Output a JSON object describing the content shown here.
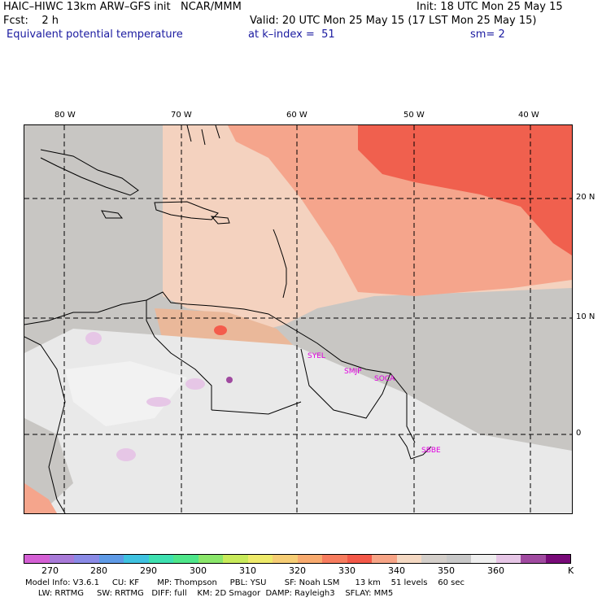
{
  "header": {
    "title": "HAIC–HIWC 13km ARW–GFS init   NCAR/MMM",
    "init": "Init: 18 UTC Mon 25 May 15",
    "fcst": "Fcst:    2 h",
    "valid": "Valid: 20 UTC Mon 25 May 15 (17 LST Mon 25 May 15)",
    "field": "Equivalent potential temperature",
    "level": "at k–index =  51",
    "smooth": "sm= 2"
  },
  "map": {
    "lon_labels": [
      "80 W",
      "70 W",
      "60 W",
      "50 W",
      "40 W"
    ],
    "lat_labels": [
      "20 N",
      "10 N",
      "0"
    ],
    "stations": [
      "SYEL",
      "SMJP",
      "SOCA",
      "SBBE"
    ]
  },
  "colorbar": {
    "colors": [
      "#d45fd4",
      "#a87ad8",
      "#8a8ae6",
      "#5e9ae6",
      "#3fc2e0",
      "#3ee0b0",
      "#4ee68a",
      "#8ae66a",
      "#c8ea5a",
      "#eeea6a",
      "#f6cd74",
      "#f8aa6e",
      "#f77c5e",
      "#f35848",
      "#f7a486",
      "#f4d8c2",
      "#d4cfca",
      "#c8c8c8",
      "#eeeeee",
      "#e6c6e6",
      "#a04aa0",
      "#780a78"
    ],
    "labels": [
      "270",
      "280",
      "290",
      "300",
      "310",
      "320",
      "330",
      "340",
      "350",
      "360"
    ],
    "unit": "K"
  },
  "footer": {
    "line1": "Model Info: V3.6.1     CU: KF       MP: Thompson     PBL: YSU       SF: Noah LSM      13 km    51 levels    60 sec",
    "line2": "     LW: RRTMG     SW: RRTMG   DIFF: full    KM: 2D Smagor  DAMP: Rayleigh3    SFLAY: MM5"
  }
}
